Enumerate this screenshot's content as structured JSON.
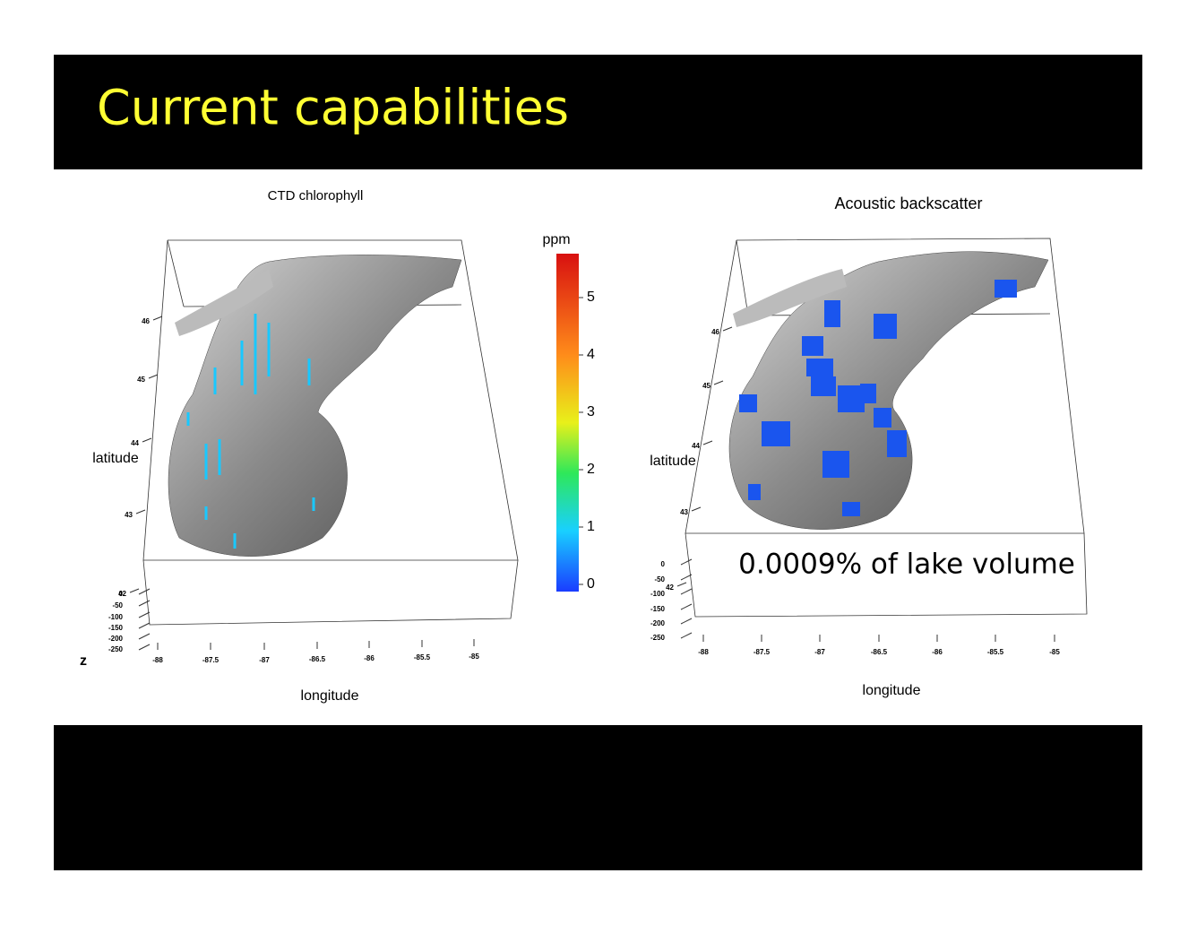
{
  "slide": {
    "title": "Current capabilities"
  },
  "panels": [
    {
      "title": "CTD chlorophyll",
      "xlabel": "longitude",
      "ylabel": "latitude",
      "zlabel": "z",
      "xticks": [
        "-88",
        "-87.5",
        "-87",
        "-86.5",
        "-86",
        "-85.5",
        "-85"
      ],
      "yticks": [
        "46",
        "45",
        "44",
        "43",
        "42"
      ],
      "zticks": [
        "0",
        "-50",
        "-100",
        "-150",
        "-200",
        "-250"
      ]
    },
    {
      "title": "Acoustic backscatter",
      "xlabel": "longitude",
      "ylabel": "latitude",
      "xticks": [
        "-88",
        "-87.5",
        "-87",
        "-86.5",
        "-86",
        "-85.5",
        "-85"
      ],
      "yticks": [
        "46",
        "45",
        "44",
        "43",
        "42"
      ],
      "zticks": [
        "0",
        "-50",
        "-100",
        "-150",
        "-200",
        "-250"
      ],
      "annotation": "0.0009% of lake volume"
    }
  ],
  "colorbar": {
    "label": "ppm",
    "ticks": [
      "0",
      "1",
      "2",
      "3",
      "4",
      "5"
    ]
  }
}
